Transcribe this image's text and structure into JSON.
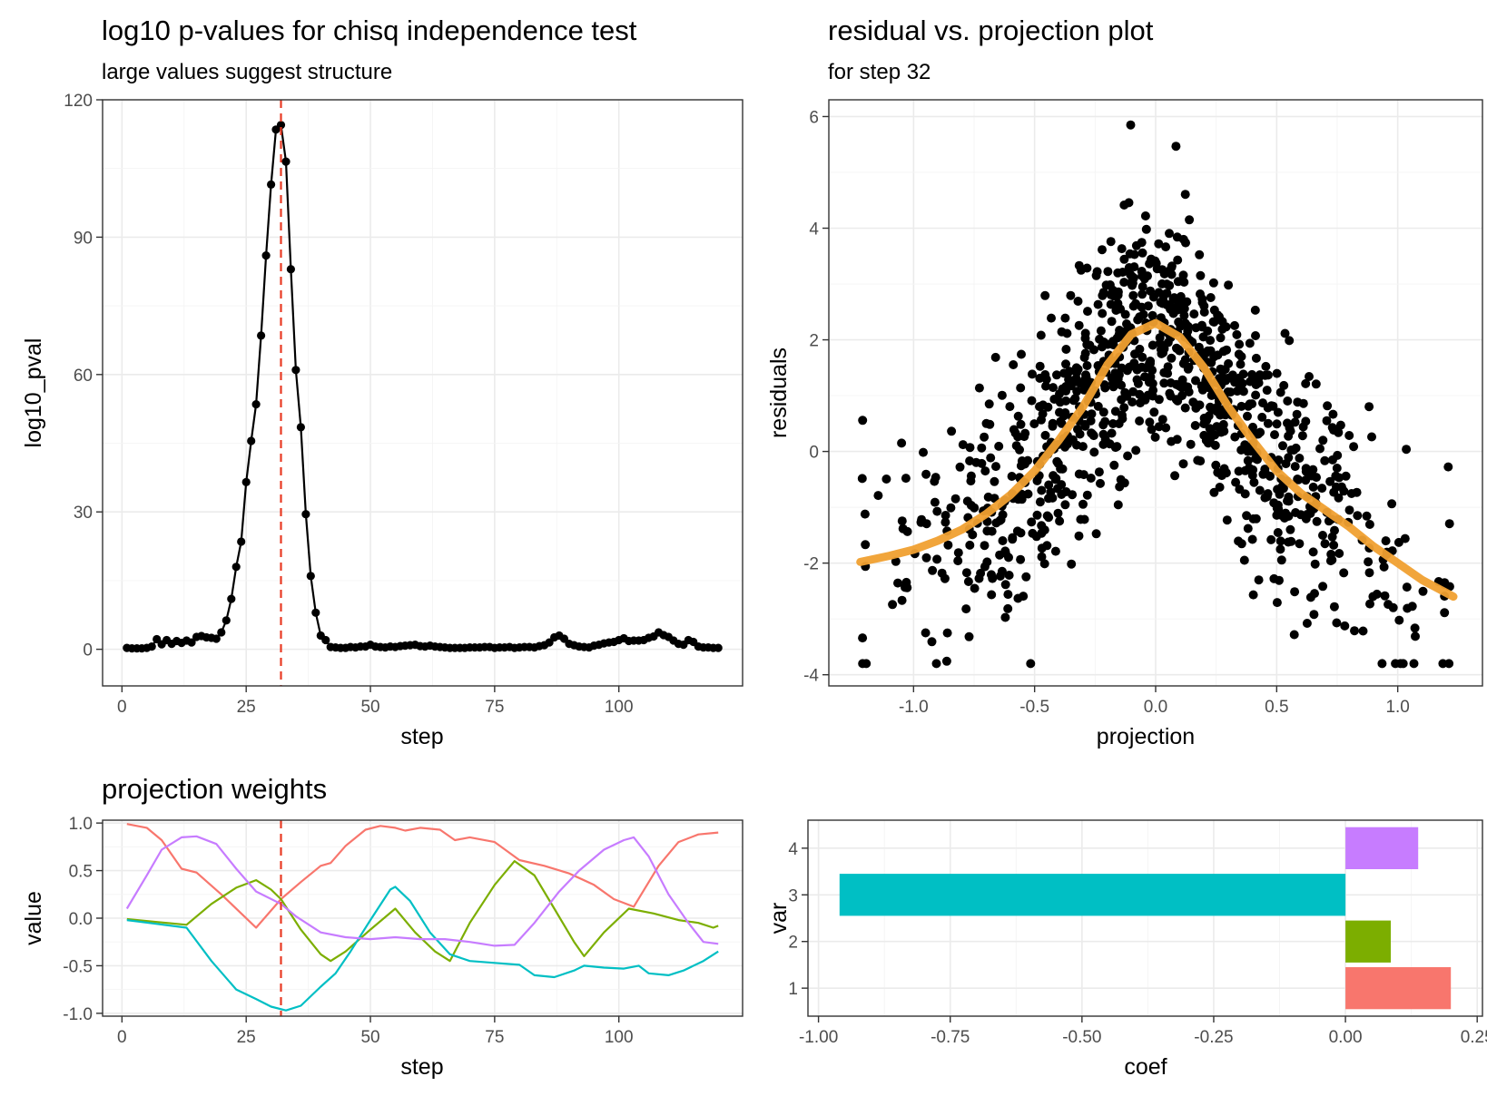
{
  "colors": {
    "red": "#F8766D",
    "green": "#7CAE00",
    "teal": "#00BFC4",
    "purple": "#C77CFF",
    "smooth": "#F0A030",
    "vline": "#E83B24",
    "points": "#000000"
  },
  "chart_data": [
    {
      "id": "pval",
      "type": "line",
      "title": "log10 p-values for chisq independence test",
      "subtitle": "large values suggest structure",
      "xlabel": "step",
      "ylabel": "log10_pval",
      "xlim": [
        -3.9,
        124.9
      ],
      "ylim": [
        -8,
        120
      ],
      "xticks": [
        0,
        25,
        50,
        75,
        100
      ],
      "yticks": [
        0,
        30,
        60,
        90,
        120
      ],
      "grid": true,
      "vline": 32,
      "x_start": 1,
      "y": [
        0.3,
        0.2,
        0.2,
        0.2,
        0.3,
        0.6,
        2.2,
        1.1,
        2.0,
        1.2,
        1.8,
        1.4,
        1.9,
        1.5,
        2.7,
        2.9,
        2.6,
        2.5,
        2.3,
        3.7,
        6.3,
        11.0,
        18.0,
        23.5,
        36.5,
        45.5,
        53.5,
        68.5,
        86.0,
        101.5,
        113.5,
        114.5,
        106.5,
        83.0,
        61.0,
        48.5,
        29.5,
        16.0,
        8.0,
        3.0,
        2.0,
        0.5,
        0.4,
        0.3,
        0.3,
        0.5,
        0.4,
        0.6,
        0.6,
        1.0,
        0.6,
        0.5,
        0.4,
        0.6,
        0.5,
        0.7,
        0.8,
        0.9,
        1.0,
        0.7,
        0.6,
        0.8,
        0.6,
        0.5,
        0.4,
        0.3,
        0.3,
        0.3,
        0.3,
        0.4,
        0.4,
        0.4,
        0.5,
        0.5,
        0.3,
        0.4,
        0.4,
        0.5,
        0.3,
        0.4,
        0.5,
        0.5,
        0.4,
        0.7,
        0.9,
        1.5,
        2.6,
        3.0,
        2.3,
        1.2,
        0.9,
        0.6,
        0.5,
        0.4,
        0.8,
        1.0,
        1.3,
        1.5,
        1.6,
        2.0,
        2.4,
        1.8,
        1.9,
        1.9,
        2.0,
        2.5,
        2.8,
        3.7,
        3.1,
        2.7,
        1.9,
        1.2,
        1.0,
        2.0,
        1.6,
        0.6,
        0.4,
        0.4,
        0.3,
        0.3
      ]
    },
    {
      "id": "resid",
      "type": "scatter",
      "title": "residual vs. projection plot",
      "subtitle": "for step 32",
      "xlabel": "projection",
      "ylabel": "residuals",
      "xlim": [
        -1.35,
        1.35
      ],
      "ylim": [
        -4.2,
        6.3
      ],
      "xticks": [
        -1.0,
        -0.5,
        0.0,
        0.5,
        1.0
      ],
      "xtick_labels": [
        "-1.0",
        "-0.5",
        "0.0",
        "0.5",
        "1.0"
      ],
      "yticks": [
        -4,
        -2,
        0,
        2,
        4,
        6
      ],
      "grid": true,
      "points_note": "about 1000 points",
      "smooth": [
        [
          -1.22,
          -1.98
        ],
        [
          -1.1,
          -1.87
        ],
        [
          -1.0,
          -1.76
        ],
        [
          -0.9,
          -1.6
        ],
        [
          -0.8,
          -1.4
        ],
        [
          -0.7,
          -1.12
        ],
        [
          -0.6,
          -0.78
        ],
        [
          -0.5,
          -0.35
        ],
        [
          -0.4,
          0.2
        ],
        [
          -0.3,
          0.8
        ],
        [
          -0.2,
          1.55
        ],
        [
          -0.1,
          2.1
        ],
        [
          0.0,
          2.3
        ],
        [
          0.1,
          2.05
        ],
        [
          0.2,
          1.5
        ],
        [
          0.3,
          0.8
        ],
        [
          0.4,
          0.2
        ],
        [
          0.5,
          -0.35
        ],
        [
          0.6,
          -0.75
        ],
        [
          0.7,
          -1.05
        ],
        [
          0.8,
          -1.35
        ],
        [
          0.9,
          -1.7
        ],
        [
          1.0,
          -2.0
        ],
        [
          1.1,
          -2.3
        ],
        [
          1.23,
          -2.6
        ]
      ]
    },
    {
      "id": "weights",
      "type": "line",
      "title": "projection weights",
      "xlabel": "step",
      "ylabel": "value",
      "xlim": [
        -3.9,
        124.9
      ],
      "ylim": [
        -1.03,
        1.03
      ],
      "xticks": [
        0,
        25,
        50,
        75,
        100
      ],
      "yticks": [
        -1.0,
        -0.5,
        0.0,
        0.5,
        1.0
      ],
      "ytick_labels": [
        "-1.0",
        "-0.5",
        "0.0",
        "0.5",
        "1.0"
      ],
      "grid": true,
      "vline": 32,
      "series": [
        {
          "color": "red",
          "points": [
            [
              1,
              0.99
            ],
            [
              5,
              0.95
            ],
            [
              8,
              0.82
            ],
            [
              12,
              0.52
            ],
            [
              15,
              0.48
            ],
            [
              20,
              0.25
            ],
            [
              27,
              -0.1
            ],
            [
              32,
              0.2
            ],
            [
              36,
              0.38
            ],
            [
              40,
              0.55
            ],
            [
              42,
              0.58
            ],
            [
              45,
              0.76
            ],
            [
              49,
              0.93
            ],
            [
              52,
              0.97
            ],
            [
              55,
              0.95
            ],
            [
              57,
              0.92
            ],
            [
              60,
              0.95
            ],
            [
              64,
              0.93
            ],
            [
              67,
              0.82
            ],
            [
              70,
              0.85
            ],
            [
              75,
              0.8
            ],
            [
              80,
              0.61
            ],
            [
              85,
              0.55
            ],
            [
              90,
              0.47
            ],
            [
              95,
              0.35
            ],
            [
              99,
              0.2
            ],
            [
              103,
              0.12
            ],
            [
              108,
              0.55
            ],
            [
              112,
              0.8
            ],
            [
              116,
              0.88
            ],
            [
              120,
              0.9
            ]
          ]
        },
        {
          "color": "green",
          "points": [
            [
              1,
              -0.01
            ],
            [
              7,
              -0.04
            ],
            [
              13,
              -0.07
            ],
            [
              18,
              0.15
            ],
            [
              23,
              0.32
            ],
            [
              27,
              0.4
            ],
            [
              30,
              0.3
            ],
            [
              32,
              0.2
            ],
            [
              36,
              -0.12
            ],
            [
              40,
              -0.38
            ],
            [
              42,
              -0.45
            ],
            [
              45,
              -0.35
            ],
            [
              50,
              -0.12
            ],
            [
              55,
              0.1
            ],
            [
              59,
              -0.15
            ],
            [
              63,
              -0.35
            ],
            [
              66,
              -0.45
            ],
            [
              70,
              -0.05
            ],
            [
              75,
              0.35
            ],
            [
              79,
              0.6
            ],
            [
              83,
              0.45
            ],
            [
              87,
              0.1
            ],
            [
              91,
              -0.25
            ],
            [
              93,
              -0.4
            ],
            [
              97,
              -0.15
            ],
            [
              102,
              0.1
            ],
            [
              107,
              0.05
            ],
            [
              112,
              -0.02
            ],
            [
              116,
              -0.05
            ],
            [
              119,
              -0.1
            ],
            [
              120,
              -0.08
            ]
          ]
        },
        {
          "color": "teal",
          "points": [
            [
              1,
              -0.02
            ],
            [
              7,
              -0.06
            ],
            [
              13,
              -0.1
            ],
            [
              18,
              -0.45
            ],
            [
              23,
              -0.75
            ],
            [
              27,
              -0.85
            ],
            [
              30,
              -0.93
            ],
            [
              33,
              -0.97
            ],
            [
              36,
              -0.92
            ],
            [
              40,
              -0.72
            ],
            [
              43,
              -0.58
            ],
            [
              46,
              -0.35
            ],
            [
              50,
              -0.02
            ],
            [
              54,
              0.3
            ],
            [
              55,
              0.33
            ],
            [
              58,
              0.18
            ],
            [
              62,
              -0.15
            ],
            [
              66,
              -0.38
            ],
            [
              70,
              -0.45
            ],
            [
              75,
              -0.47
            ],
            [
              80,
              -0.49
            ],
            [
              83,
              -0.6
            ],
            [
              87,
              -0.62
            ],
            [
              91,
              -0.55
            ],
            [
              93,
              -0.5
            ],
            [
              97,
              -0.52
            ],
            [
              101,
              -0.53
            ],
            [
              104,
              -0.5
            ],
            [
              106,
              -0.58
            ],
            [
              110,
              -0.6
            ],
            [
              113,
              -0.55
            ],
            [
              117,
              -0.45
            ],
            [
              120,
              -0.35
            ]
          ]
        },
        {
          "color": "purple",
          "points": [
            [
              1,
              0.1
            ],
            [
              5,
              0.45
            ],
            [
              8,
              0.72
            ],
            [
              12,
              0.85
            ],
            [
              15,
              0.86
            ],
            [
              19,
              0.78
            ],
            [
              23,
              0.52
            ],
            [
              27,
              0.28
            ],
            [
              32,
              0.15
            ],
            [
              35,
              0.02
            ],
            [
              40,
              -0.15
            ],
            [
              45,
              -0.2
            ],
            [
              50,
              -0.22
            ],
            [
              55,
              -0.2
            ],
            [
              60,
              -0.22
            ],
            [
              65,
              -0.22
            ],
            [
              70,
              -0.25
            ],
            [
              75,
              -0.29
            ],
            [
              79,
              -0.28
            ],
            [
              83,
              -0.05
            ],
            [
              88,
              0.28
            ],
            [
              92,
              0.5
            ],
            [
              97,
              0.72
            ],
            [
              101,
              0.82
            ],
            [
              103,
              0.85
            ],
            [
              106,
              0.65
            ],
            [
              110,
              0.25
            ],
            [
              114,
              -0.05
            ],
            [
              117,
              -0.25
            ],
            [
              120,
              -0.27
            ]
          ]
        }
      ]
    },
    {
      "id": "coef",
      "type": "bar",
      "orientation": "horizontal",
      "xlabel": "coef",
      "ylabel": "var",
      "xlim": [
        -1.02,
        0.26
      ],
      "xticks": [
        -1.0,
        -0.75,
        -0.5,
        -0.25,
        0.0,
        0.25
      ],
      "xtick_labels": [
        "-1.00",
        "-0.75",
        "-0.50",
        "-0.25",
        "0.00",
        "0.25"
      ],
      "categories": [
        "1",
        "2",
        "3",
        "4"
      ],
      "values": [
        0.2,
        0.086,
        -0.96,
        0.138
      ],
      "bar_colors": [
        "red",
        "green",
        "teal",
        "purple"
      ],
      "grid": true
    }
  ]
}
